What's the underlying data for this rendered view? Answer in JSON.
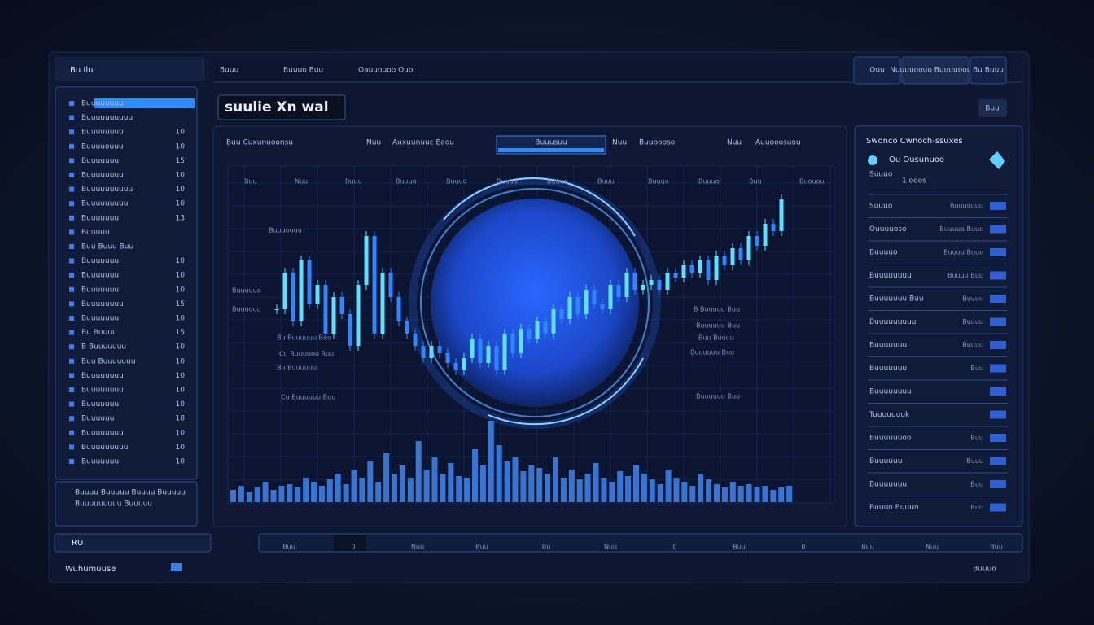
{
  "sidebar": {
    "title": "Bu Ilu",
    "items": [
      {
        "label": "Buuuuuuuu",
        "active": true
      },
      {
        "label": "Buuuuuuuuuu"
      },
      {
        "label": "Buuuuuuuu",
        "value": "10"
      },
      {
        "label": "Buuuuouuu",
        "value": "10"
      },
      {
        "label": "Buuuuuuu",
        "value": "15"
      },
      {
        "label": "Buuuuuuuu",
        "value": "10"
      },
      {
        "label": "Buuuuuuuuuu",
        "value": "10"
      },
      {
        "label": "Buuuuuuuuu",
        "value": "10"
      },
      {
        "label": "Buuuuuuu",
        "value": "13"
      },
      {
        "label": "Buuuuu"
      },
      {
        "label": "Buu Buuu Buu"
      },
      {
        "label": "Buuuuuuu",
        "value": "10"
      },
      {
        "label": "Buuuuuuu",
        "value": "10"
      },
      {
        "label": "Buuuuuuu",
        "value": "10"
      },
      {
        "label": "Buuuuuuuu",
        "value": "15"
      },
      {
        "label": "Buuuuuuu",
        "value": "10"
      },
      {
        "label": "Bu Buuuu",
        "value": "15"
      },
      {
        "label": "B Buuuuuuu",
        "value": "10"
      },
      {
        "label": "Buu Buuuuuuu",
        "value": "10"
      },
      {
        "label": "Buuuuuuuu",
        "value": "10"
      },
      {
        "label": "Buuuuuuuu",
        "value": "10"
      },
      {
        "label": "Buuuuuuu",
        "value": "10"
      },
      {
        "label": "Buuuuuu",
        "value": "18"
      },
      {
        "label": "Buuuuuuuu",
        "value": "10"
      },
      {
        "label": "Buuuuuuuuu",
        "value": "10"
      },
      {
        "label": "Buuuuuuu",
        "value": "10"
      }
    ],
    "footer": [
      "Buuuu Buuuuu Buuuu Buuuuu",
      "Buuuuuuuuu Buuuuu"
    ]
  },
  "topbar": {
    "items": [
      "Buuu",
      "Buuuo Buu",
      "Oauuouoo Ouo"
    ],
    "buttons": [
      "Ouu",
      "Nuuuuoouo Buuuuoouuu",
      "Bu Buuu"
    ]
  },
  "title": "suulie Xn wal",
  "corner_button": "Buu",
  "chart": {
    "tabs": [
      {
        "label": "Buu Cuxunuoonsu"
      },
      {
        "label": "Nuu"
      },
      {
        "label": "Auxuunuuc Eaou"
      },
      {
        "label": "Buuusuu",
        "active": true
      },
      {
        "label": "Nuu"
      },
      {
        "label": "Buuoooso"
      },
      {
        "label": "Nuu"
      },
      {
        "label": "Auuooosuou"
      }
    ],
    "column_labels": [
      "Buu",
      "Nuu",
      "Buuu",
      "Buuuo",
      "Buuuo",
      "Buuuu",
      "Buuuo",
      "Buuu",
      "Buuuo",
      "Buuuo",
      "Buu",
      "Buouou"
    ],
    "annotations": [
      "Buuuouuu",
      "Buuuuuo",
      "Buuuooo",
      "Bu Buuuuuu Buu",
      "Cu Buuuuou Buu",
      "Bu Buuuuuu",
      "Cu Buuuuuu Buu",
      "B Buuuuu Buu",
      "Buuuuuu Buu",
      "Buu Buuuu",
      "Buuuuuu Buu",
      "Buuuuuu Buu"
    ],
    "ylim": [
      0,
      100
    ],
    "vlim": [
      0,
      100
    ],
    "up_color": "#5fe0ff",
    "down_color": "#2f86ff",
    "volume_color": "#3d7fe6",
    "prices": [
      40,
      55,
      35,
      60,
      42,
      50,
      30,
      45,
      38,
      25,
      50,
      70,
      30,
      55,
      45,
      35,
      30,
      25,
      20,
      25,
      22,
      18,
      15,
      20,
      28,
      18,
      25,
      15,
      30,
      22,
      32,
      28,
      35,
      30,
      40,
      36,
      45,
      38,
      48,
      42,
      40,
      50,
      45,
      55,
      48,
      50,
      52,
      48,
      55,
      53,
      58,
      55,
      60,
      52,
      62,
      58,
      65,
      60,
      70,
      66,
      75,
      72,
      85
    ],
    "volumes": [
      15,
      20,
      12,
      18,
      25,
      15,
      20,
      22,
      18,
      30,
      25,
      20,
      28,
      35,
      22,
      40,
      30,
      50,
      25,
      60,
      35,
      45,
      30,
      75,
      40,
      55,
      35,
      48,
      32,
      30,
      65,
      45,
      100,
      70,
      50,
      55,
      38,
      45,
      42,
      35,
      55,
      30,
      40,
      28,
      35,
      48,
      30,
      25,
      38,
      32,
      45,
      35,
      28,
      22,
      40,
      30,
      25,
      20,
      35,
      28,
      22,
      18,
      25,
      20,
      22,
      18,
      20,
      15,
      18,
      20
    ]
  },
  "right_panel": {
    "heading": "Swonco Cwnoch-ssuxes",
    "subheading": "Ou Ousunuoo",
    "stats": [
      "Suuuo",
      "1 ooos"
    ],
    "rows": [
      {
        "label": "Suuuo",
        "value": "Buuuuuuu"
      },
      {
        "label": "Ouuuuoso",
        "value": "Buuuuo Buuo"
      },
      {
        "label": "Buuuuo",
        "value": "Buuuu Buuo"
      },
      {
        "label": "Buuuuuuuu",
        "value": "Buuuu Buu"
      },
      {
        "label": "Buuuuuuu Buu",
        "value": "Buuuu"
      },
      {
        "label": "Buuuuuuuuu",
        "value": "Buuuu"
      },
      {
        "label": "Buuuuuuu",
        "value": "Buuuu"
      },
      {
        "label": "Buuuuuuu",
        "value": "Buu"
      },
      {
        "label": "Buuuuuuuu"
      },
      {
        "label": "Tuuuuuuuk"
      },
      {
        "label": "Buuuuuuoo",
        "value": "Buu"
      },
      {
        "label": "Buuuuuu",
        "value": "Buuu"
      },
      {
        "label": "Buuuuuuu",
        "value": "Buu"
      },
      {
        "label": "Buuuo Buuuo",
        "value": "Buu"
      }
    ]
  },
  "bottom": {
    "left_label": "RU",
    "timeline": [
      "Buu",
      "0",
      "Nuu",
      "Buu",
      "Bu",
      "Nuu",
      "0",
      "Buu",
      "0",
      "Buu",
      "Nuu",
      "Buu"
    ]
  },
  "footer": {
    "left": "Wuhumuuse",
    "right": "Buuuo"
  }
}
